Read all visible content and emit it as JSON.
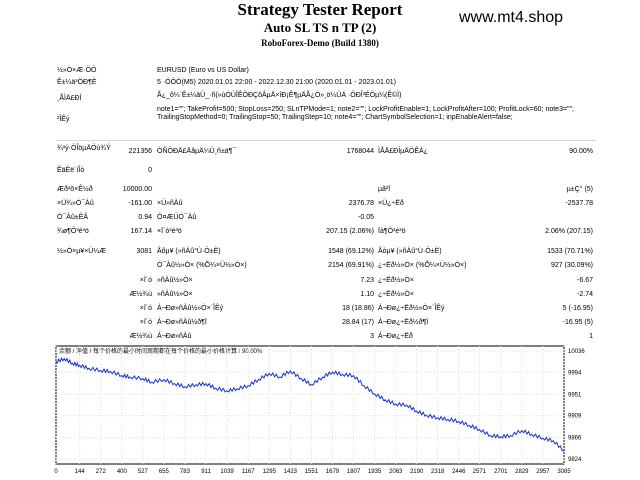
{
  "header": {
    "title": "Strategy Tester Report",
    "subtitle": "Auto SL TS n TP (2)",
    "server": "RoboForex-Demo (Build 1380)",
    "watermark": "www.mt4.shop"
  },
  "settings": {
    "symbol_label": "½»Ò×Æ·ÖÖ",
    "symbol_value": "EURUSD (Euro vs US Dollar)",
    "period_label": "Ê±¼ä³ÖÐ¶È",
    "period_value": "5 ·ÖÖÓ(M5) 2020.01.01 22:00 - 2022.12.30 21:00 (2020.01.01 - 2023.01.01)",
    "model_label": "¸ÃÌÄ£ÐÍ",
    "model_value": "Ã¿_ô¼´Ê±¼äÛ_·ñ(»ùÓÚÎÊÖÐÇôÂµÄ×îÐ¡Ê¶µÄÃ¿Ò»¸ö¼ÛÁ ·ÖÐÎ³ÉÖµ¼(Ê©Ì)",
    "params_label": "²ÎÊý",
    "params_value": "note1=\"\"; TakeProfit=500; StopLoss=250; SLnTPMode=1; note2=\"\"; LockProfitEnable=1; LockProfitAfter=100; ProfitLock=60; note3=\"\"; TrailingStopMethod=0; TrailingStop=50; TrailingStep=10; note4=\"\"; ChartSymbolSelection=1; inpEnableAlert=false;"
  },
  "stats": {
    "bars_label": "¾¹ý·ÖÎöµÄÖù¾Ý",
    "bars_value": "221356",
    "ticks_label": "ÒÑÖÐÄ£ÄâµÄ¼Û¸ñ±ä¶¯",
    "ticks_value": "1768044",
    "quality_label": "ÌÃÄ£ÐÍµÄÖÊÁ¿",
    "quality_value": "90.00%",
    "errors_label": "ÊäÈë´íÎó",
    "errors_value": "0",
    "deposit_label": "Æð³õ×Ê½ð",
    "deposit_value": "10000.00",
    "spread_label": "µã²î",
    "spread_value": "µ±Ç° (5)",
    "net_label": "×Ü¾»Ó¯Àû",
    "net_value": "-161.00",
    "gross_profit_label": "×Ü»ñÀû",
    "gross_profit_value": "2376.78",
    "gross_loss_label": "×Ü¿÷Ëð",
    "gross_loss_value": "-2537.78",
    "pf_label": "Ó¯Àû±ÈÂ",
    "pf_value": "0.94",
    "exp_label": "Ô¤ÆÚÓ¯Àû",
    "exp_value": "-0.05",
    "abs_dd_label": "¾ø¶Ô³é³ö",
    "abs_dd_value": "167.14",
    "max_dd_label": "×î´ó³é³ö",
    "max_dd_value": "207.15 (2.06%)",
    "rel_dd_label": "Ïà¶Ô³é³ö",
    "rel_dd_value": "2.06% (207.15)",
    "trades_label": "½»Ò×µ¥×Ü¼Æ",
    "trades_value": "3081",
    "short_label": "Âôµ¥ (»ñÀû°Ù·Ö±È)",
    "short_value": "1548 (69.12%)",
    "long_label": "Âòµ¥ (»ñÀû°Ù·Ö±È)",
    "long_value": "1533 (70.71%)",
    "profit_trades_label": "Ó¯Àû½»Ò× (%Õ¼×Ü½»Ò×)",
    "profit_trades_value": "2154 (69.91%)",
    "loss_trades_label": "¿÷Ëð½»Ò× (%Õ¼×Ü½»Ò×)",
    "loss_trades_value": "927 (30.09%)",
    "largest_label": "×î´ó",
    "largest_profit_label": "»ñÀû½»Ò×",
    "largest_profit_value": "7.23",
    "largest_loss_label": "¿÷Ëð½»Ò×",
    "largest_loss_value": "-6.67",
    "average_label": "Æ½¾ù",
    "average_profit_label": "»ñÀû½»Ò×",
    "average_profit_value": "1.10",
    "average_loss_label": "¿÷Ëð½»Ò×",
    "average_loss_value": "-2.74",
    "max_label": "×î´ó",
    "max_consec_wins_label": "Á¬Ðø»ñÀû½»Ò×´ÎÊý",
    "max_consec_wins_value": "18 (18.86)",
    "max_consec_losses_label": "Á¬Ðø¿÷Ëð½»Ò×´ÎÊý",
    "max_consec_losses_value": "5 (-16.95)",
    "maximal_label": "×î´ó",
    "max_consec_profit_label": "Á¬Ðø»ñÀû½ð¶î",
    "max_consec_profit_value": "28.84 (17)",
    "max_consec_loss_label": "Á¬Ðø¿÷Ëð½ð¶î",
    "max_consec_loss_value": "-16.95 (5)",
    "avg_consec_label": "Æ½¾ù",
    "avg_consec_wins_label": "Á¬Ðø»ñÀû",
    "avg_consec_wins_value": "3",
    "avg_consec_losses_label": "Á¬Ðø¿÷Ëð",
    "avg_consec_losses_value": "1"
  },
  "chart_caption": "余额 / 净值 / 每个价格的最小时间周期都在每个价格的最小价格计算 / 90.00%",
  "chart_data": {
    "type": "line",
    "x_ticks": [
      "0",
      "144",
      "272",
      "400",
      "527",
      "655",
      "783",
      "911",
      "1039",
      "1167",
      "1295",
      "1423",
      "1551",
      "1679",
      "1807",
      "1935",
      "2063",
      "2190",
      "2318",
      "2446",
      "2571",
      "2701",
      "2829",
      "2957",
      "3085"
    ],
    "y_ticks": [
      "10036",
      "9994",
      "9951",
      "9909",
      "9866",
      "9824"
    ],
    "xlim": [
      0,
      3085
    ],
    "ylim": [
      9824,
      10036
    ],
    "series": [
      {
        "color": "#1a33cc",
        "x": [
          0,
          50,
          100,
          144,
          200,
          272,
          330,
          400,
          450,
          527,
          580,
          655,
          720,
          783,
          850,
          911,
          970,
          1039,
          1100,
          1167,
          1230,
          1295,
          1360,
          1423,
          1490,
          1551,
          1620,
          1679,
          1740,
          1807,
          1870,
          1935,
          2000,
          2063,
          2130,
          2190,
          2250,
          2318,
          2380,
          2446,
          2510,
          2571,
          2640,
          2701,
          2760,
          2829,
          2890,
          2957,
          3020,
          3085
        ],
        "values": [
          10015,
          10021,
          10012,
          10008,
          10002,
          9998,
          9996,
          9988,
          9985,
          9982,
          9975,
          9980,
          9972,
          9966,
          9970,
          9972,
          9963,
          9958,
          9962,
          9968,
          9980,
          9992,
          9985,
          9997,
          9982,
          9970,
          9985,
          9995,
          9990,
          9988,
          9968,
          9952,
          9940,
          9932,
          9930,
          9918,
          9910,
          9905,
          9902,
          9898,
          9890,
          9882,
          9870,
          9868,
          9870,
          9880,
          9872,
          9865,
          9860,
          9840
        ]
      }
    ]
  }
}
